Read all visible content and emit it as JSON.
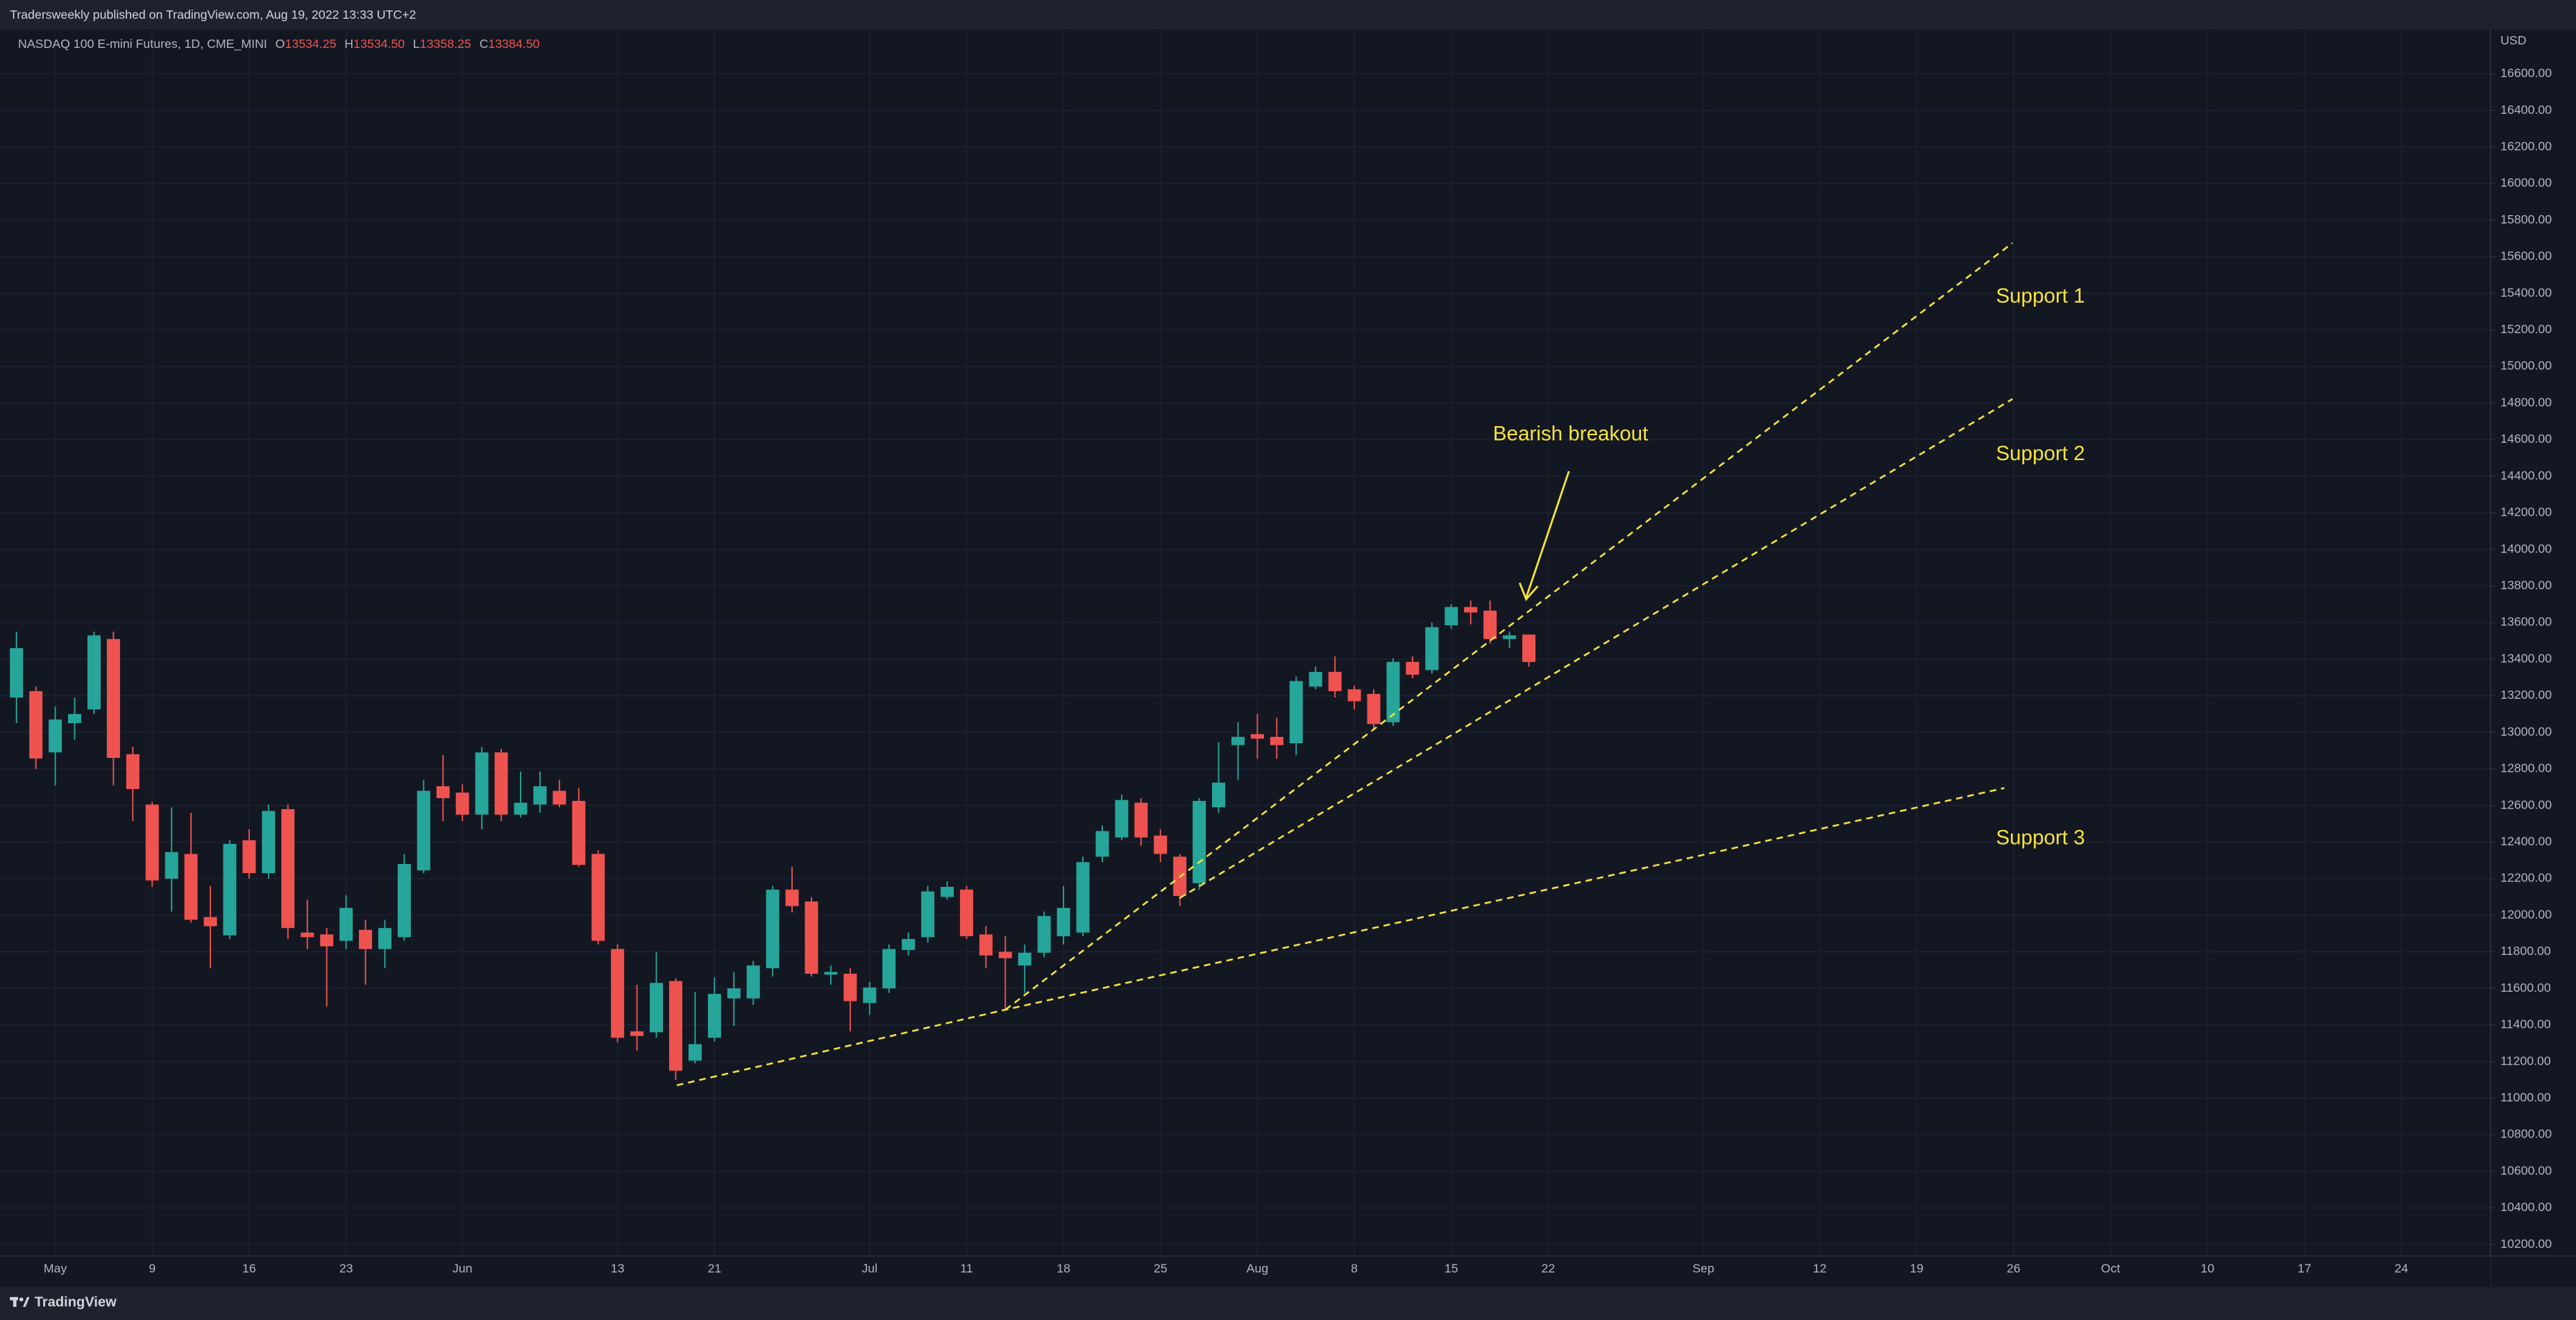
{
  "header": {
    "publisher": "Tradersweekly published on TradingView.com, Aug 19, 2022 13:33 UTC+2"
  },
  "footer": {
    "brand": "TradingView"
  },
  "chart_data": {
    "type": "candlestick",
    "title": "NASDAQ 100 E-mini Futures, 1D, CME_MINI",
    "ohlc_labels": [
      {
        "key": "O",
        "text": "13534.25"
      },
      {
        "key": "H",
        "text": "13534.50"
      },
      {
        "key": "L",
        "text": "13358.25"
      },
      {
        "key": "C",
        "text": "13384.50"
      }
    ],
    "currency": "USD",
    "up_color": "#26a69a",
    "down_color": "#ef5350",
    "grid": true,
    "open": [
      13190,
      13225,
      12890,
      13050,
      13125,
      13510,
      12880,
      12605,
      12200,
      12335,
      11990,
      11890,
      12410,
      12230,
      12580,
      11905,
      11895,
      11860,
      11920,
      11815,
      11880,
      12245,
      12705,
      12670,
      12550,
      12890,
      12550,
      12605,
      12680,
      12625,
      12335,
      11815,
      11365,
      11360,
      11640,
      11205,
      11330,
      11545,
      11545,
      11710,
      12140,
      12075,
      11675,
      11680,
      11520,
      11600,
      11810,
      11880,
      12100,
      12140,
      11895,
      11800,
      11725,
      11795,
      11885,
      11905,
      12320,
      12425,
      12615,
      12435,
      12320,
      12175,
      12590,
      12930,
      12990,
      12975,
      12940,
      13250,
      13330,
      13235,
      13210,
      13055,
      13385,
      13340,
      13585,
      13685,
      13665,
      13510,
      13534.25
    ],
    "high": [
      13550,
      13250,
      13140,
      13190,
      13550,
      13550,
      12920,
      12620,
      12590,
      12560,
      12160,
      12410,
      12470,
      12605,
      12605,
      12085,
      11930,
      12110,
      11975,
      11975,
      12335,
      12740,
      12875,
      12715,
      12920,
      12910,
      12785,
      12785,
      12740,
      12695,
      12355,
      11840,
      11620,
      11800,
      11655,
      11580,
      11660,
      11690,
      11750,
      12160,
      12265,
      12100,
      11725,
      11710,
      11635,
      11840,
      11905,
      12160,
      12185,
      12160,
      11940,
      11885,
      11840,
      12020,
      12160,
      12320,
      12490,
      12660,
      12640,
      12470,
      12335,
      12640,
      12945,
      13055,
      13100,
      13080,
      13305,
      13360,
      13415,
      13255,
      13235,
      13405,
      13415,
      13600,
      13700,
      13720,
      13720,
      13550,
      13534.5
    ],
    "low": [
      13050,
      12800,
      12710,
      12960,
      13100,
      12710,
      12515,
      12155,
      12020,
      11960,
      11710,
      11870,
      12200,
      12200,
      11870,
      11815,
      11500,
      11815,
      11620,
      11710,
      11860,
      12230,
      12515,
      12515,
      12470,
      12515,
      12535,
      12560,
      12590,
      12265,
      11840,
      11305,
      11260,
      11330,
      11100,
      11190,
      11310,
      11395,
      11510,
      11665,
      12015,
      11665,
      11620,
      11365,
      11455,
      11575,
      11780,
      11850,
      12085,
      11870,
      11710,
      11485,
      11575,
      11770,
      11840,
      11885,
      12290,
      12410,
      12380,
      12290,
      12050,
      12140,
      12560,
      12740,
      12855,
      12855,
      12875,
      13235,
      13190,
      13125,
      13020,
      13035,
      13295,
      13320,
      13565,
      13590,
      13485,
      13460,
      13358.25
    ],
    "close": [
      13460,
      12857,
      13070,
      13100,
      13530,
      12860,
      12690,
      12190,
      12345,
      11975,
      11940,
      12390,
      12230,
      12570,
      11930,
      11880,
      11830,
      12040,
      11815,
      11930,
      12280,
      12680,
      12640,
      12550,
      12890,
      12550,
      12615,
      12705,
      12605,
      12275,
      11860,
      11330,
      11340,
      11630,
      11150,
      11295,
      11570,
      11600,
      11725,
      12140,
      12050,
      11680,
      11690,
      11530,
      11605,
      11815,
      11870,
      12130,
      12155,
      11885,
      11780,
      11765,
      11795,
      11995,
      12040,
      12290,
      12460,
      12630,
      12425,
      12335,
      12105,
      12625,
      12725,
      12975,
      12965,
      12930,
      13280,
      13330,
      13225,
      13170,
      13045,
      13385,
      13315,
      13575,
      13685,
      13655,
      13510,
      13530,
      13384.5
    ],
    "xlim": [
      -0.85,
      127.6
    ],
    "xticks": [
      {
        "value": 2,
        "label": "May"
      },
      {
        "value": 7,
        "label": "9"
      },
      {
        "value": 12,
        "label": "16"
      },
      {
        "value": 17,
        "label": "23"
      },
      {
        "value": 23,
        "label": "Jun"
      },
      {
        "value": 31,
        "label": "13"
      },
      {
        "value": 36,
        "label": "21"
      },
      {
        "value": 44,
        "label": "Jul"
      },
      {
        "value": 49,
        "label": "11"
      },
      {
        "value": 54,
        "label": "18"
      },
      {
        "value": 59,
        "label": "25"
      },
      {
        "value": 64,
        "label": "Aug"
      },
      {
        "value": 69,
        "label": "8"
      },
      {
        "value": 74,
        "label": "15"
      },
      {
        "value": 79,
        "label": "22"
      },
      {
        "value": 87,
        "label": "Sep"
      },
      {
        "value": 93,
        "label": "12"
      },
      {
        "value": 98,
        "label": "19"
      },
      {
        "value": 103,
        "label": "26"
      },
      {
        "value": 108,
        "label": "Oct"
      },
      {
        "value": 113,
        "label": "10"
      },
      {
        "value": 118,
        "label": "17"
      },
      {
        "value": 123,
        "label": "24"
      }
    ],
    "ylim": [
      10137,
      16842
    ],
    "yticks": [
      {
        "value": 10200,
        "label": "10200.00"
      },
      {
        "value": 10400,
        "label": "10400.00"
      },
      {
        "value": 10600,
        "label": "10600.00"
      },
      {
        "value": 10800,
        "label": "10800.00"
      },
      {
        "value": 11000,
        "label": "11000.00"
      },
      {
        "value": 11200,
        "label": "11200.00"
      },
      {
        "value": 11400,
        "label": "11400.00"
      },
      {
        "value": 11600,
        "label": "11600.00"
      },
      {
        "value": 11800,
        "label": "11800.00"
      },
      {
        "value": 12000,
        "label": "12000.00"
      },
      {
        "value": 12200,
        "label": "12200.00"
      },
      {
        "value": 12400,
        "label": "12400.00"
      },
      {
        "value": 12600,
        "label": "12600.00"
      },
      {
        "value": 12800,
        "label": "12800.00"
      },
      {
        "value": 13000,
        "label": "13000.00"
      },
      {
        "value": 13200,
        "label": "13200.00"
      },
      {
        "value": 13400,
        "label": "13400.00"
      },
      {
        "value": 13600,
        "label": "13600.00"
      },
      {
        "value": 13800,
        "label": "13800.00"
      },
      {
        "value": 14000,
        "label": "14000.00"
      },
      {
        "value": 14200,
        "label": "14200.00"
      },
      {
        "value": 14400,
        "label": "14400.00"
      },
      {
        "value": 14600,
        "label": "14600.00"
      },
      {
        "value": 14800,
        "label": "14800.00"
      },
      {
        "value": 15000,
        "label": "15000.00"
      },
      {
        "value": 15200,
        "label": "15200.00"
      },
      {
        "value": 15400,
        "label": "15400.00"
      },
      {
        "value": 15600,
        "label": "15600.00"
      },
      {
        "value": 15800,
        "label": "15800.00"
      },
      {
        "value": 16000,
        "label": "16000.00"
      },
      {
        "value": 16200,
        "label": "16200.00"
      },
      {
        "value": 16400,
        "label": "16400.00"
      },
      {
        "value": 16600,
        "label": "16600.00"
      }
    ],
    "annotations": [
      "Bearish breakout",
      "Support 1",
      "Support 2",
      "Support 3"
    ]
  }
}
